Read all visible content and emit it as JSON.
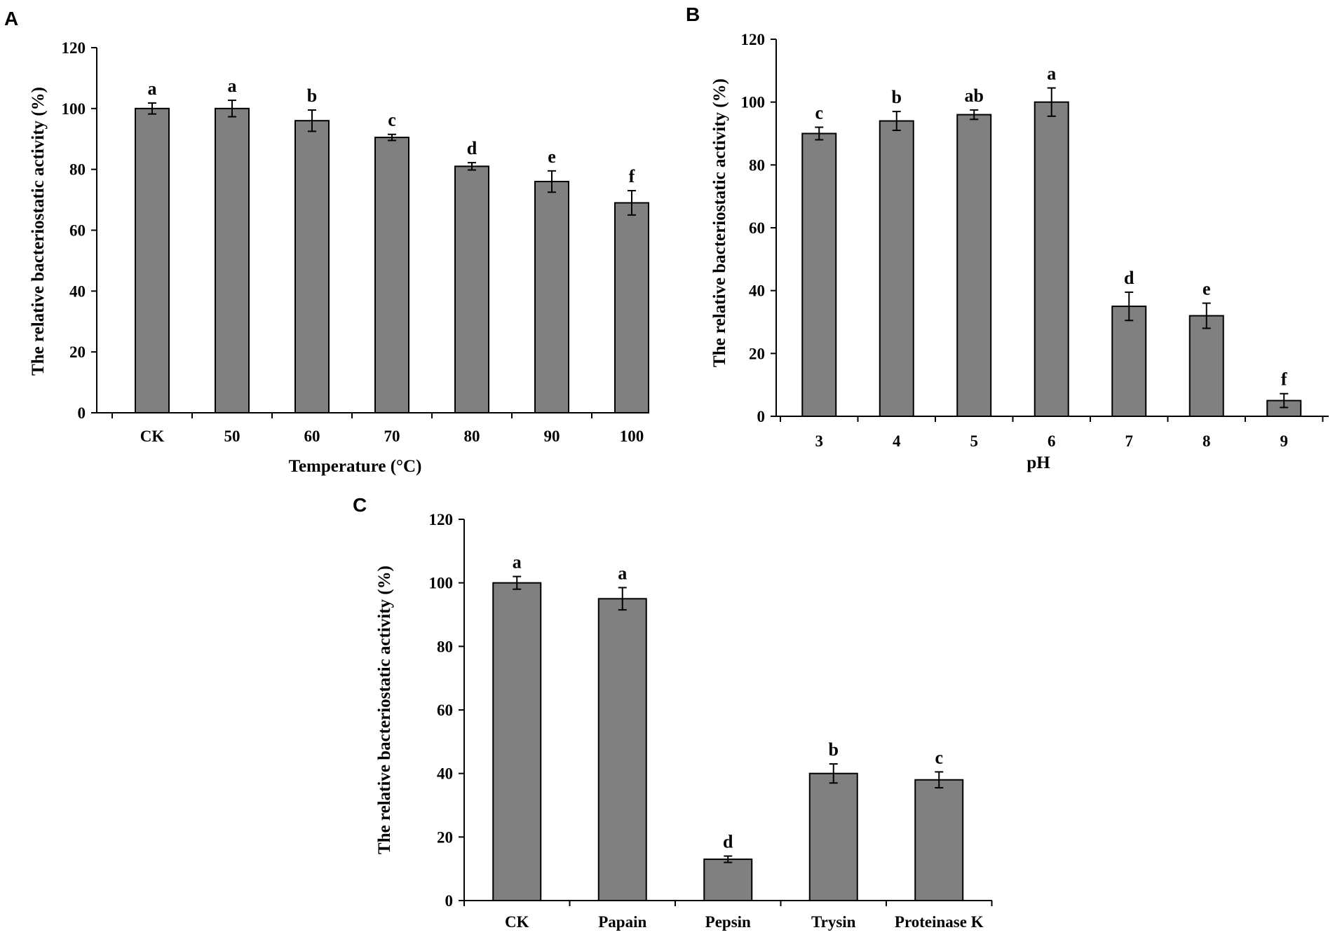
{
  "chart_data": [
    {
      "panel": "A",
      "type": "bar",
      "title": "",
      "xlabel": "Temperature (°C)",
      "ylabel": "The relative bacteriostatic activity (%)",
      "ylim": [
        0,
        120
      ],
      "yticks": [
        0,
        20,
        40,
        60,
        80,
        100,
        120
      ],
      "categories": [
        "CK",
        "50",
        "60",
        "70",
        "80",
        "90",
        "100"
      ],
      "values": [
        100,
        100,
        96,
        90.5,
        81,
        76,
        69
      ],
      "errors": [
        1.8,
        2.7,
        3.5,
        1,
        1.2,
        3.5,
        4
      ],
      "significance": [
        "a",
        "a",
        "b",
        "c",
        "d",
        "e",
        "f"
      ],
      "bar_color": "#808080",
      "grid": false
    },
    {
      "panel": "B",
      "type": "bar",
      "title": "",
      "xlabel": "pH",
      "ylabel": "The relative bacteriostatic activity (%)",
      "ylim": [
        0,
        120
      ],
      "yticks": [
        0,
        20,
        40,
        60,
        80,
        100,
        120
      ],
      "categories": [
        "3",
        "4",
        "5",
        "6",
        "7",
        "8",
        "9"
      ],
      "values": [
        90,
        94,
        96,
        100,
        35,
        32,
        5
      ],
      "errors": [
        2,
        3,
        1.5,
        4.5,
        4.5,
        4,
        2.2
      ],
      "significance": [
        "c",
        "b",
        "ab",
        "a",
        "d",
        "e",
        "f"
      ],
      "bar_color": "#808080",
      "grid": false
    },
    {
      "panel": "C",
      "type": "bar",
      "title": "",
      "xlabel": "",
      "ylabel": "The relative bacteriostatic activity (%)",
      "ylim": [
        0,
        120
      ],
      "yticks": [
        0,
        20,
        40,
        60,
        80,
        100,
        120
      ],
      "categories": [
        "CK",
        "Papain",
        "Pepsin",
        "Trysin",
        "Proteinase K"
      ],
      "values": [
        100,
        95,
        13,
        40,
        38
      ],
      "errors": [
        2,
        3.5,
        1,
        3,
        2.5
      ],
      "significance": [
        "a",
        "a",
        "d",
        "b",
        "c"
      ],
      "bar_color": "#808080",
      "grid": false
    }
  ]
}
